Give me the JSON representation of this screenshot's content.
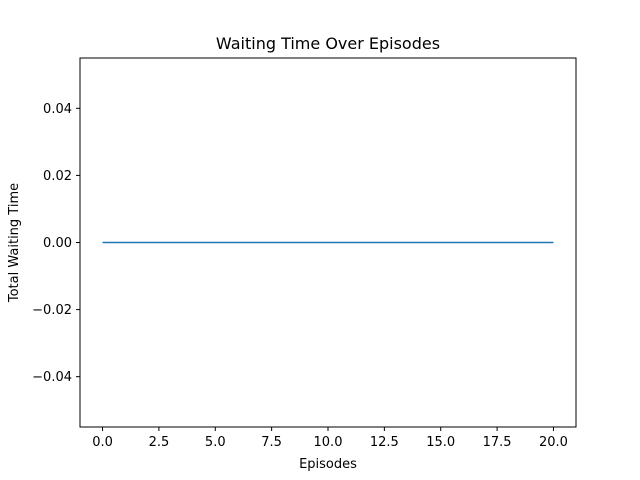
{
  "chart_data": {
    "type": "line",
    "title": "Waiting Time Over Episodes",
    "xlabel": "Episodes",
    "ylabel": "Total Waiting Time",
    "xlim": [
      -1,
      21
    ],
    "ylim": [
      -0.055,
      0.055
    ],
    "x_ticks": [
      0,
      2.5,
      5,
      7.5,
      10,
      12.5,
      15,
      17.5,
      20
    ],
    "x_tick_labels": [
      "0.0",
      "2.5",
      "5.0",
      "7.5",
      "10.0",
      "12.5",
      "15.0",
      "17.5",
      "20.0"
    ],
    "y_ticks": [
      -0.04,
      -0.02,
      0.0,
      0.02,
      0.04
    ],
    "y_tick_labels": [
      "−0.04",
      "−0.02",
      "0.00",
      "0.02",
      "0.04"
    ],
    "grid": false,
    "series": [
      {
        "color": "#1f77b4",
        "x": [
          0,
          1,
          2,
          3,
          4,
          5,
          6,
          7,
          8,
          9,
          10,
          11,
          12,
          13,
          14,
          15,
          16,
          17,
          18,
          19,
          20
        ],
        "y": [
          0,
          0,
          0,
          0,
          0,
          0,
          0,
          0,
          0,
          0,
          0,
          0,
          0,
          0,
          0,
          0,
          0,
          0,
          0,
          0,
          0
        ]
      }
    ]
  }
}
